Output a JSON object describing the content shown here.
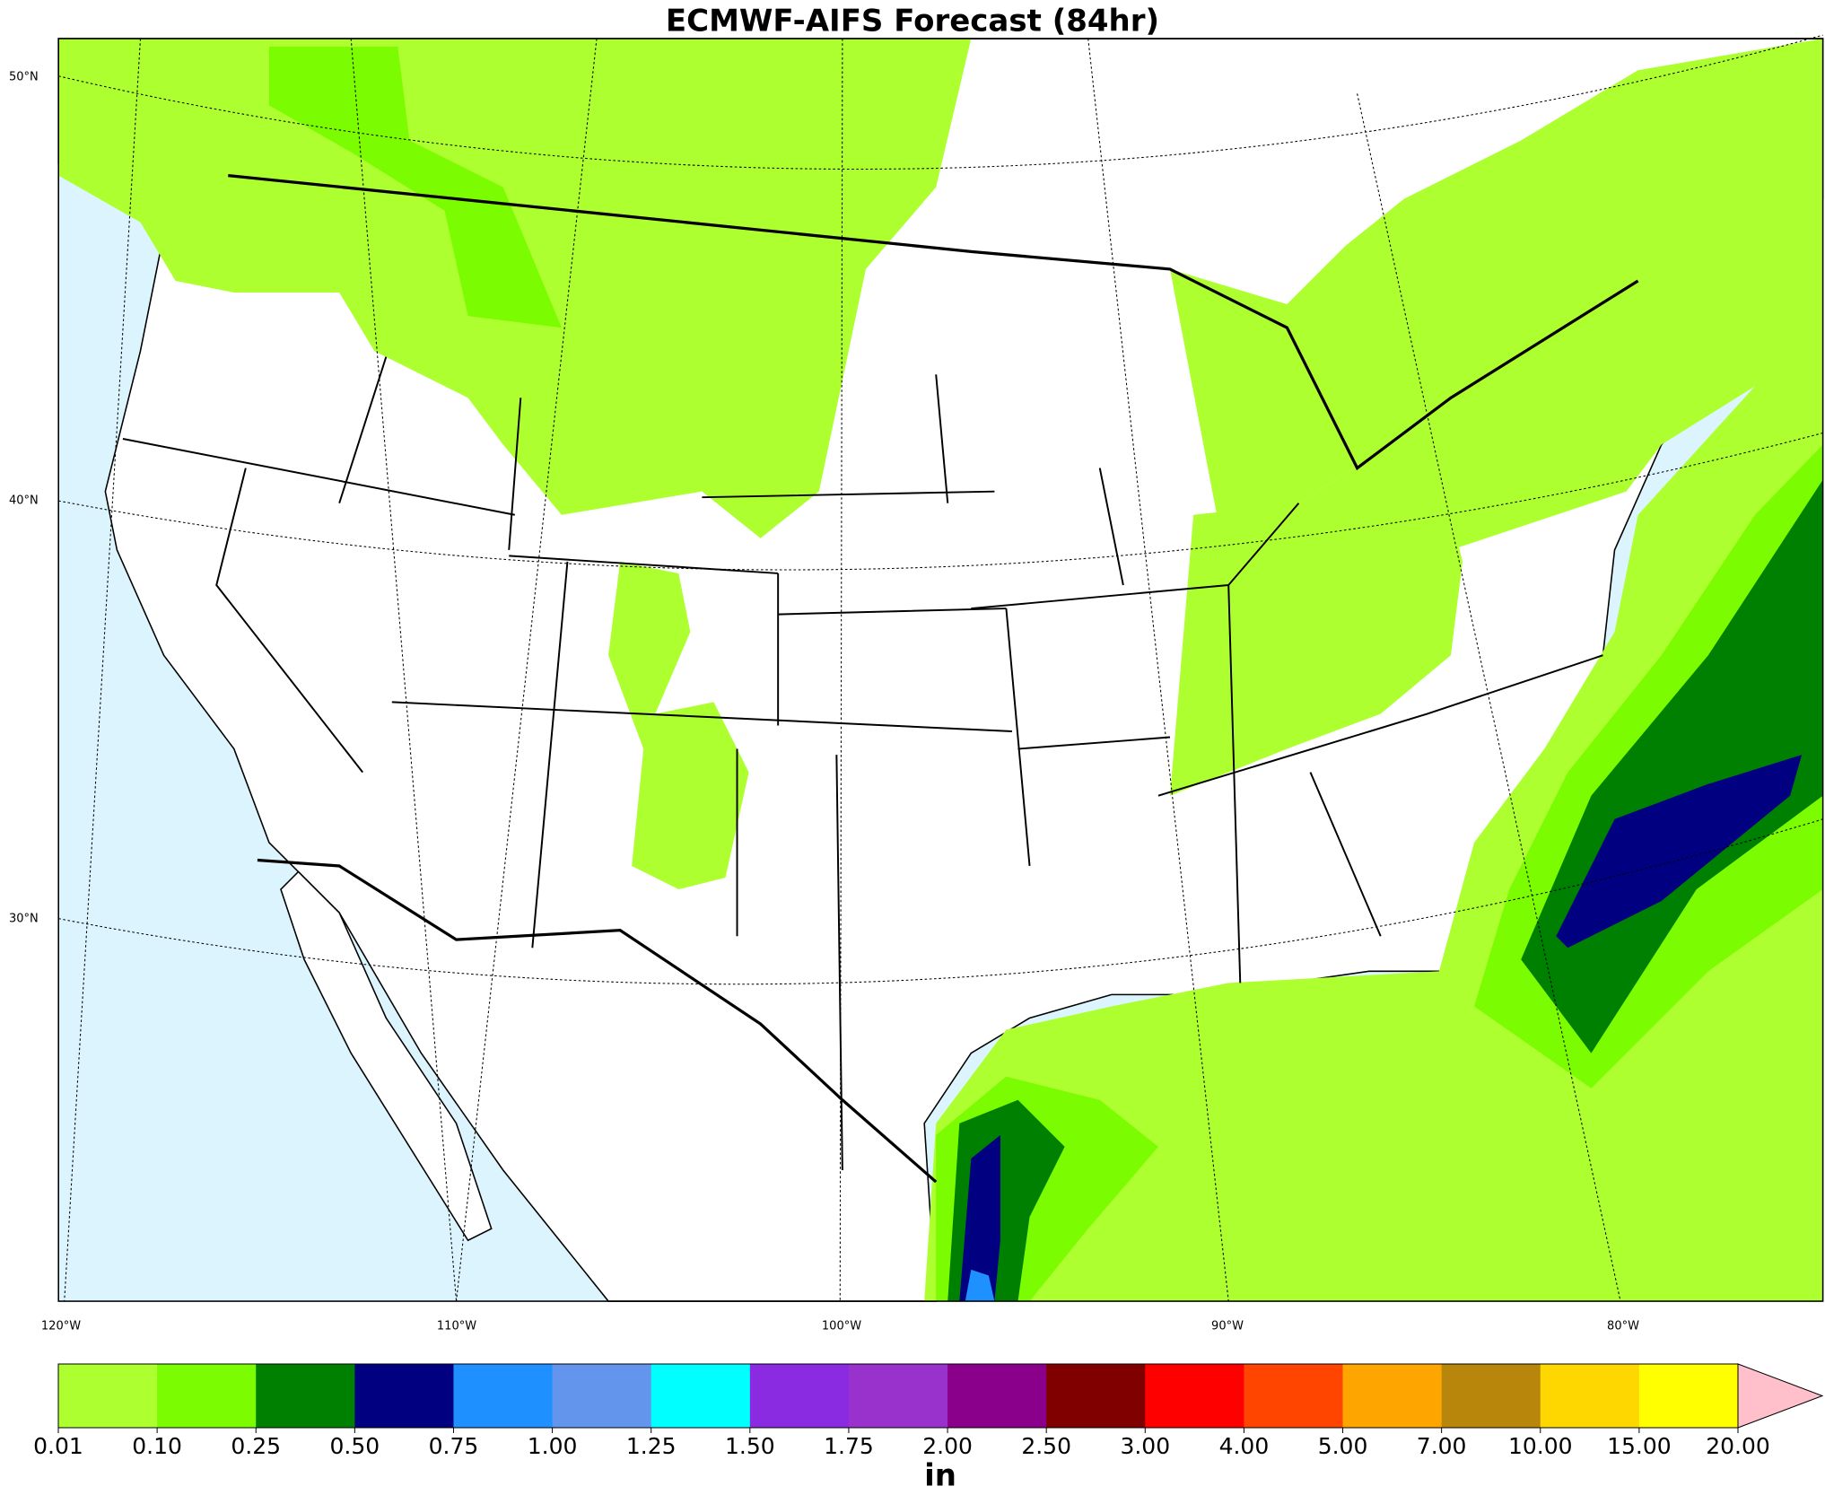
{
  "title": "ECMWF-AIFS Forecast (84hr)",
  "map": {
    "lat_labels": [
      "50°N",
      "40°N",
      "30°N"
    ],
    "lon_labels": [
      "120°W",
      "110°W",
      "100°W",
      "90°W",
      "80°W"
    ]
  },
  "colorbar": {
    "levels": [
      {
        "value": 0.01,
        "label": "0.01"
      },
      {
        "value": 0.1,
        "label": "0.10"
      },
      {
        "value": 0.25,
        "label": "0.25"
      },
      {
        "value": 0.5,
        "label": "0.50"
      },
      {
        "value": 0.75,
        "label": "0.75"
      },
      {
        "value": 1,
        "label": "1.00"
      },
      {
        "value": 1.25,
        "label": "1.25"
      },
      {
        "value": 1.5,
        "label": "1.50"
      },
      {
        "value": 1.75,
        "label": "1.75"
      },
      {
        "value": 2,
        "label": "2.00"
      },
      {
        "value": 2.5,
        "label": "2.50"
      },
      {
        "value": 3,
        "label": "3.00"
      },
      {
        "value": 4,
        "label": "4.00"
      },
      {
        "value": 5,
        "label": "5.00"
      },
      {
        "value": 7,
        "label": "7.00"
      },
      {
        "value": 10,
        "label": "10.00"
      },
      {
        "value": 15,
        "label": "15.00"
      },
      {
        "value": 20,
        "label": "20.00"
      }
    ],
    "colors": [
      "#adff2f",
      "#7cfc00",
      "#008000",
      "#000080",
      "#1e90ff",
      "#6495ed",
      "#00ffff",
      "#8a2be2",
      "#9932cc",
      "#8b008b",
      "#800000",
      "#ff0000",
      "#ff4500",
      "#ffa500",
      "#b8860b",
      "#ffd700",
      "#ffff00"
    ],
    "extend_color": "#ffc0cb",
    "unit": "in"
  }
}
